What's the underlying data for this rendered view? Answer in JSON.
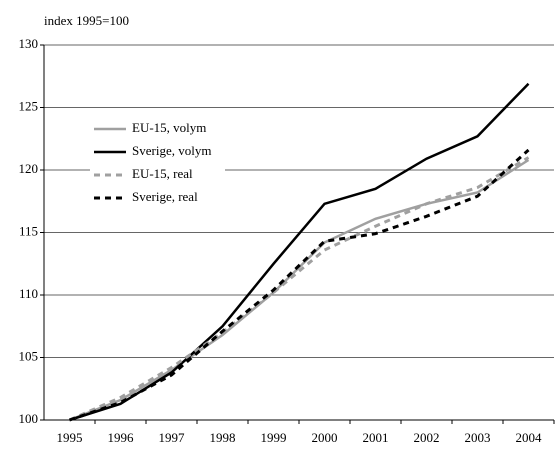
{
  "chart_data": {
    "type": "line",
    "unit_label": "index 1995=100",
    "categories": [
      "1995",
      "1996",
      "1997",
      "1998",
      "1999",
      "2000",
      "2001",
      "2002",
      "2003",
      "2004"
    ],
    "series": [
      {
        "name": "EU-15, volym",
        "color": "#a0a0a0",
        "style": "solid",
        "values": [
          100,
          101.6,
          104.0,
          106.8,
          110.2,
          114.2,
          116.1,
          117.3,
          118.2,
          120.8
        ]
      },
      {
        "name": "Sverige, volym",
        "color": "#000000",
        "style": "solid",
        "values": [
          100,
          101.3,
          103.8,
          107.5,
          112.5,
          117.3,
          118.5,
          120.9,
          122.7,
          126.9
        ]
      },
      {
        "name": "EU-15, real",
        "color": "#a0a0a0",
        "style": "dashed",
        "values": [
          100,
          101.8,
          104.2,
          107.0,
          110.2,
          113.6,
          115.5,
          117.3,
          118.6,
          121.0
        ]
      },
      {
        "name": "Sverige, real",
        "color": "#000000",
        "style": "dashed",
        "values": [
          100,
          101.4,
          103.6,
          107.1,
          110.4,
          114.3,
          114.9,
          116.3,
          117.9,
          121.6
        ]
      }
    ],
    "ylim": [
      100,
      130
    ],
    "yticks": [
      100,
      105,
      110,
      115,
      120,
      125,
      130
    ],
    "grid": true,
    "legend": "upper-left"
  }
}
